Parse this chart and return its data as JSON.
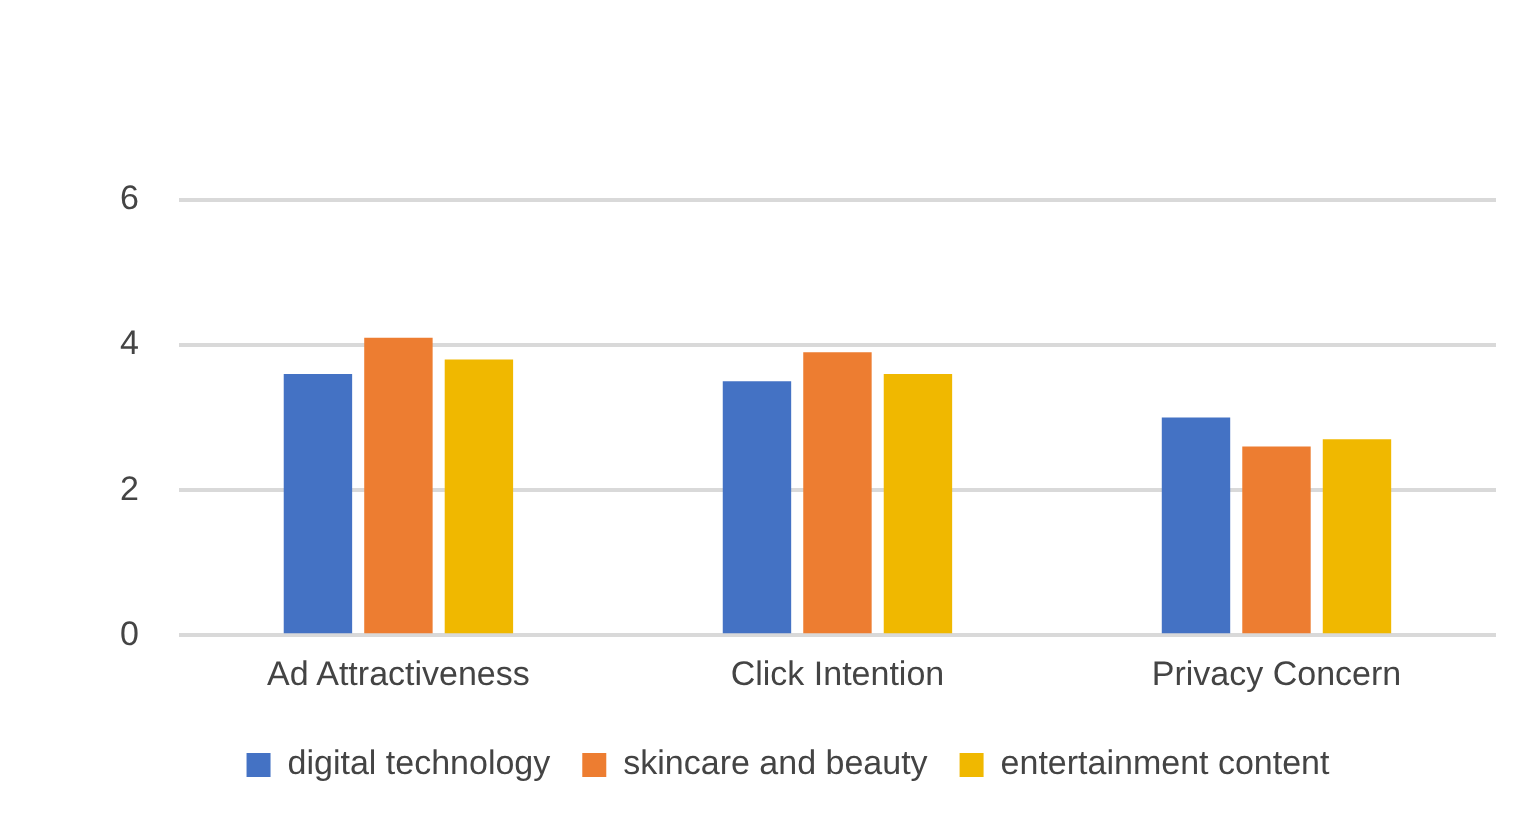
{
  "chart_data": {
    "type": "bar",
    "categories": [
      "Ad Attractiveness",
      "Click Intention",
      "Privacy Concern"
    ],
    "series": [
      {
        "name": "digital technology",
        "color": "#4472c4",
        "values": [
          3.6,
          3.5,
          3.0
        ]
      },
      {
        "name": "skincare and beauty",
        "color": "#ed7d31",
        "values": [
          4.1,
          3.9,
          2.6
        ]
      },
      {
        "name": "entertainment content",
        "color": "#f0b800",
        "values": [
          3.8,
          3.6,
          2.7
        ]
      }
    ],
    "ylim": [
      0,
      6
    ],
    "yticks": [
      0,
      2,
      4,
      6
    ],
    "grid": "y",
    "legend": "bottom"
  }
}
